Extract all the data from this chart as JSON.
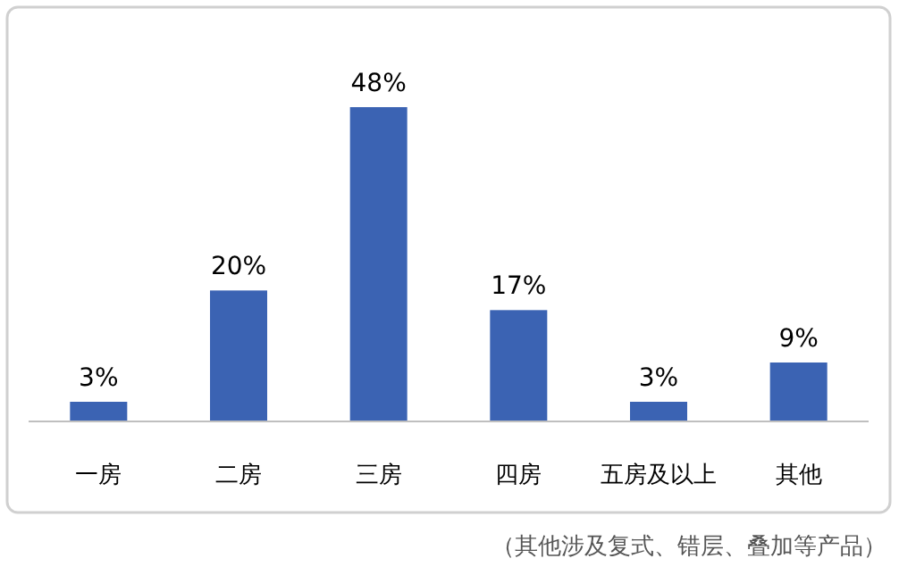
{
  "chart_data": {
    "type": "bar",
    "categories": [
      "一房",
      "二房",
      "三房",
      "四房",
      "五房及以上",
      "其他"
    ],
    "values": [
      3,
      20,
      48,
      17,
      3,
      9
    ],
    "value_labels": [
      "3%",
      "20%",
      "48%",
      "17%",
      "3%",
      "9%"
    ],
    "color": "#3b63b3",
    "annotations": [
      "（其他涉及复式、错层、叠加等产品）"
    ]
  }
}
